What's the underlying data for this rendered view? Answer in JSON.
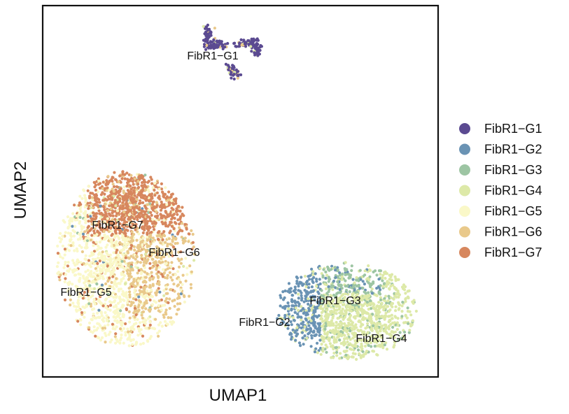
{
  "chart_data": {
    "type": "scatter",
    "xlabel": "UMAP1",
    "ylabel": "UMAP2",
    "legend_position": "right",
    "grid": false,
    "axis_ticks": false,
    "series": [
      {
        "name": "FibR1−G1",
        "color": "#5B4A91"
      },
      {
        "name": "FibR1−G2",
        "color": "#6A93B4"
      },
      {
        "name": "FibR1−G3",
        "color": "#9DC5A3"
      },
      {
        "name": "FibR1−G4",
        "color": "#DDE9A8"
      },
      {
        "name": "FibR1−G5",
        "color": "#FAF8C8"
      },
      {
        "name": "FibR1−G6",
        "color": "#E9C98B"
      },
      {
        "name": "FibR1−G7",
        "color": "#D7875E"
      }
    ],
    "cluster_labels": [
      "FibR1−G1",
      "FibR1−G2",
      "FibR1−G3",
      "FibR1−G4",
      "FibR1−G5",
      "FibR1−G6",
      "FibR1−G7"
    ]
  }
}
